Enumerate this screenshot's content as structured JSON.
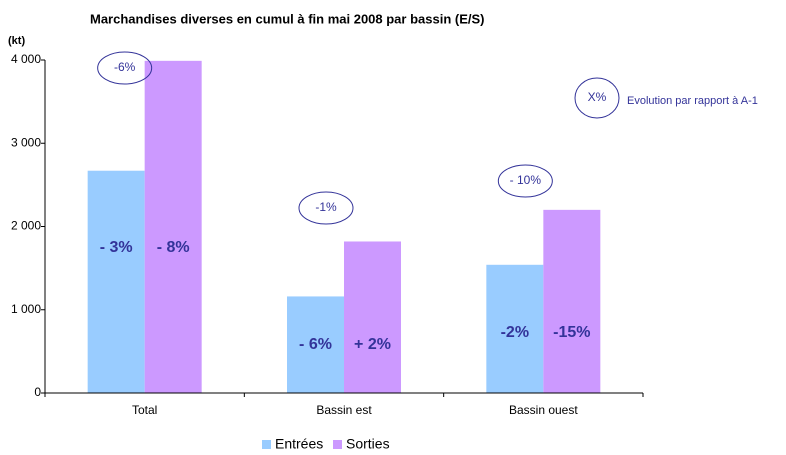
{
  "chart_data": {
    "type": "bar",
    "title": "Marchandises diverses en cumul à fin mai 2008 par bassin (E/S)",
    "y_label": "(kt)",
    "categories": [
      "Total",
      "Bassin est",
      "Bassin ouest"
    ],
    "series": [
      {
        "name": "Entrées",
        "color": "#99ccff",
        "values": [
          2670,
          1160,
          1540
        ],
        "evolution_labels": [
          "- 3%",
          "- 6%",
          "-2%"
        ]
      },
      {
        "name": "Sorties",
        "color": "#cc99ff",
        "values": [
          3990,
          1820,
          2200
        ],
        "evolution_labels": [
          "- 8%",
          "+ 2%",
          "-15%"
        ]
      }
    ],
    "category_evolution": [
      "-6%",
      "-1%",
      "- 10%"
    ],
    "key": {
      "symbol": "X%",
      "text": "Evolution par rapport à A-1"
    },
    "ylim": [
      0,
      4000
    ],
    "yticks": [
      0,
      {
        "value": 1000,
        "label": "1 000"
      },
      {
        "value": 2000,
        "label": "2 000"
      },
      {
        "value": 3000,
        "label": "3 000"
      },
      {
        "value": 4000,
        "label": "4 000"
      }
    ],
    "legend": "bottom"
  }
}
